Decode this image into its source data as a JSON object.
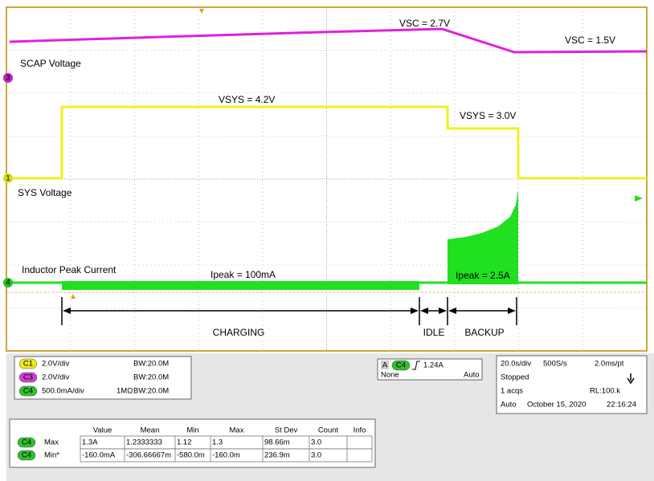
{
  "annotations": {
    "vsc_high": "VSC = 2.7V",
    "vsc_low": "VSC = 1.5V",
    "scap_label": "SCAP Voltage",
    "vsys_high": "VSYS = 4.2V",
    "vsys_low": "VSYS = 3.0V",
    "sys_label": "SYS Voltage",
    "inductor_label": "Inductor Peak Current",
    "ipeak_low": "Ipeak = 100mA",
    "ipeak_high": "Ipeak = 2.5A",
    "phases": [
      "CHARGING",
      "IDLE",
      "BACKUP"
    ]
  },
  "channel_markers": [
    "3",
    "1",
    "4"
  ],
  "channels": [
    {
      "badge": "C1",
      "scale": "2.0V/div",
      "impedance": "",
      "bandwidth": "BW:20.0M"
    },
    {
      "badge": "C3",
      "scale": "2.0V/div",
      "impedance": "",
      "bandwidth": "BW:20.0M"
    },
    {
      "badge": "C4",
      "scale": "500.0mA/div",
      "impedance": "1MΩ",
      "bandwidth": "BW:20.0M"
    }
  ],
  "trigger": {
    "source_tag": "A",
    "badge": "C4",
    "level": "1.24A",
    "coupling": "None",
    "mode": "Auto"
  },
  "timebase": {
    "scale": "20.0s/div",
    "rate": "500S/s",
    "resolution": "2.0ms/pt",
    "state": "Stopped",
    "acqs": "1 acqs",
    "record": "RL:100.k",
    "mode": "Auto",
    "date": "October 15, 2020",
    "time": "22:16:24"
  },
  "measurements": {
    "headers": [
      "Value",
      "Mean",
      "Min",
      "Max",
      "St Dev",
      "Count",
      "Info"
    ],
    "rows": [
      {
        "badge": "C4",
        "label": "Max",
        "cells": [
          "1.3A",
          "1.2333333",
          "1.12",
          "1.3",
          "98.66m",
          "3.0"
        ]
      },
      {
        "badge": "C4",
        "label": "Min*",
        "cells": [
          "-160.0mA",
          "-306.66667m",
          "-580.0m",
          "-160.0m",
          "236.9m",
          "3.0"
        ]
      }
    ]
  }
}
